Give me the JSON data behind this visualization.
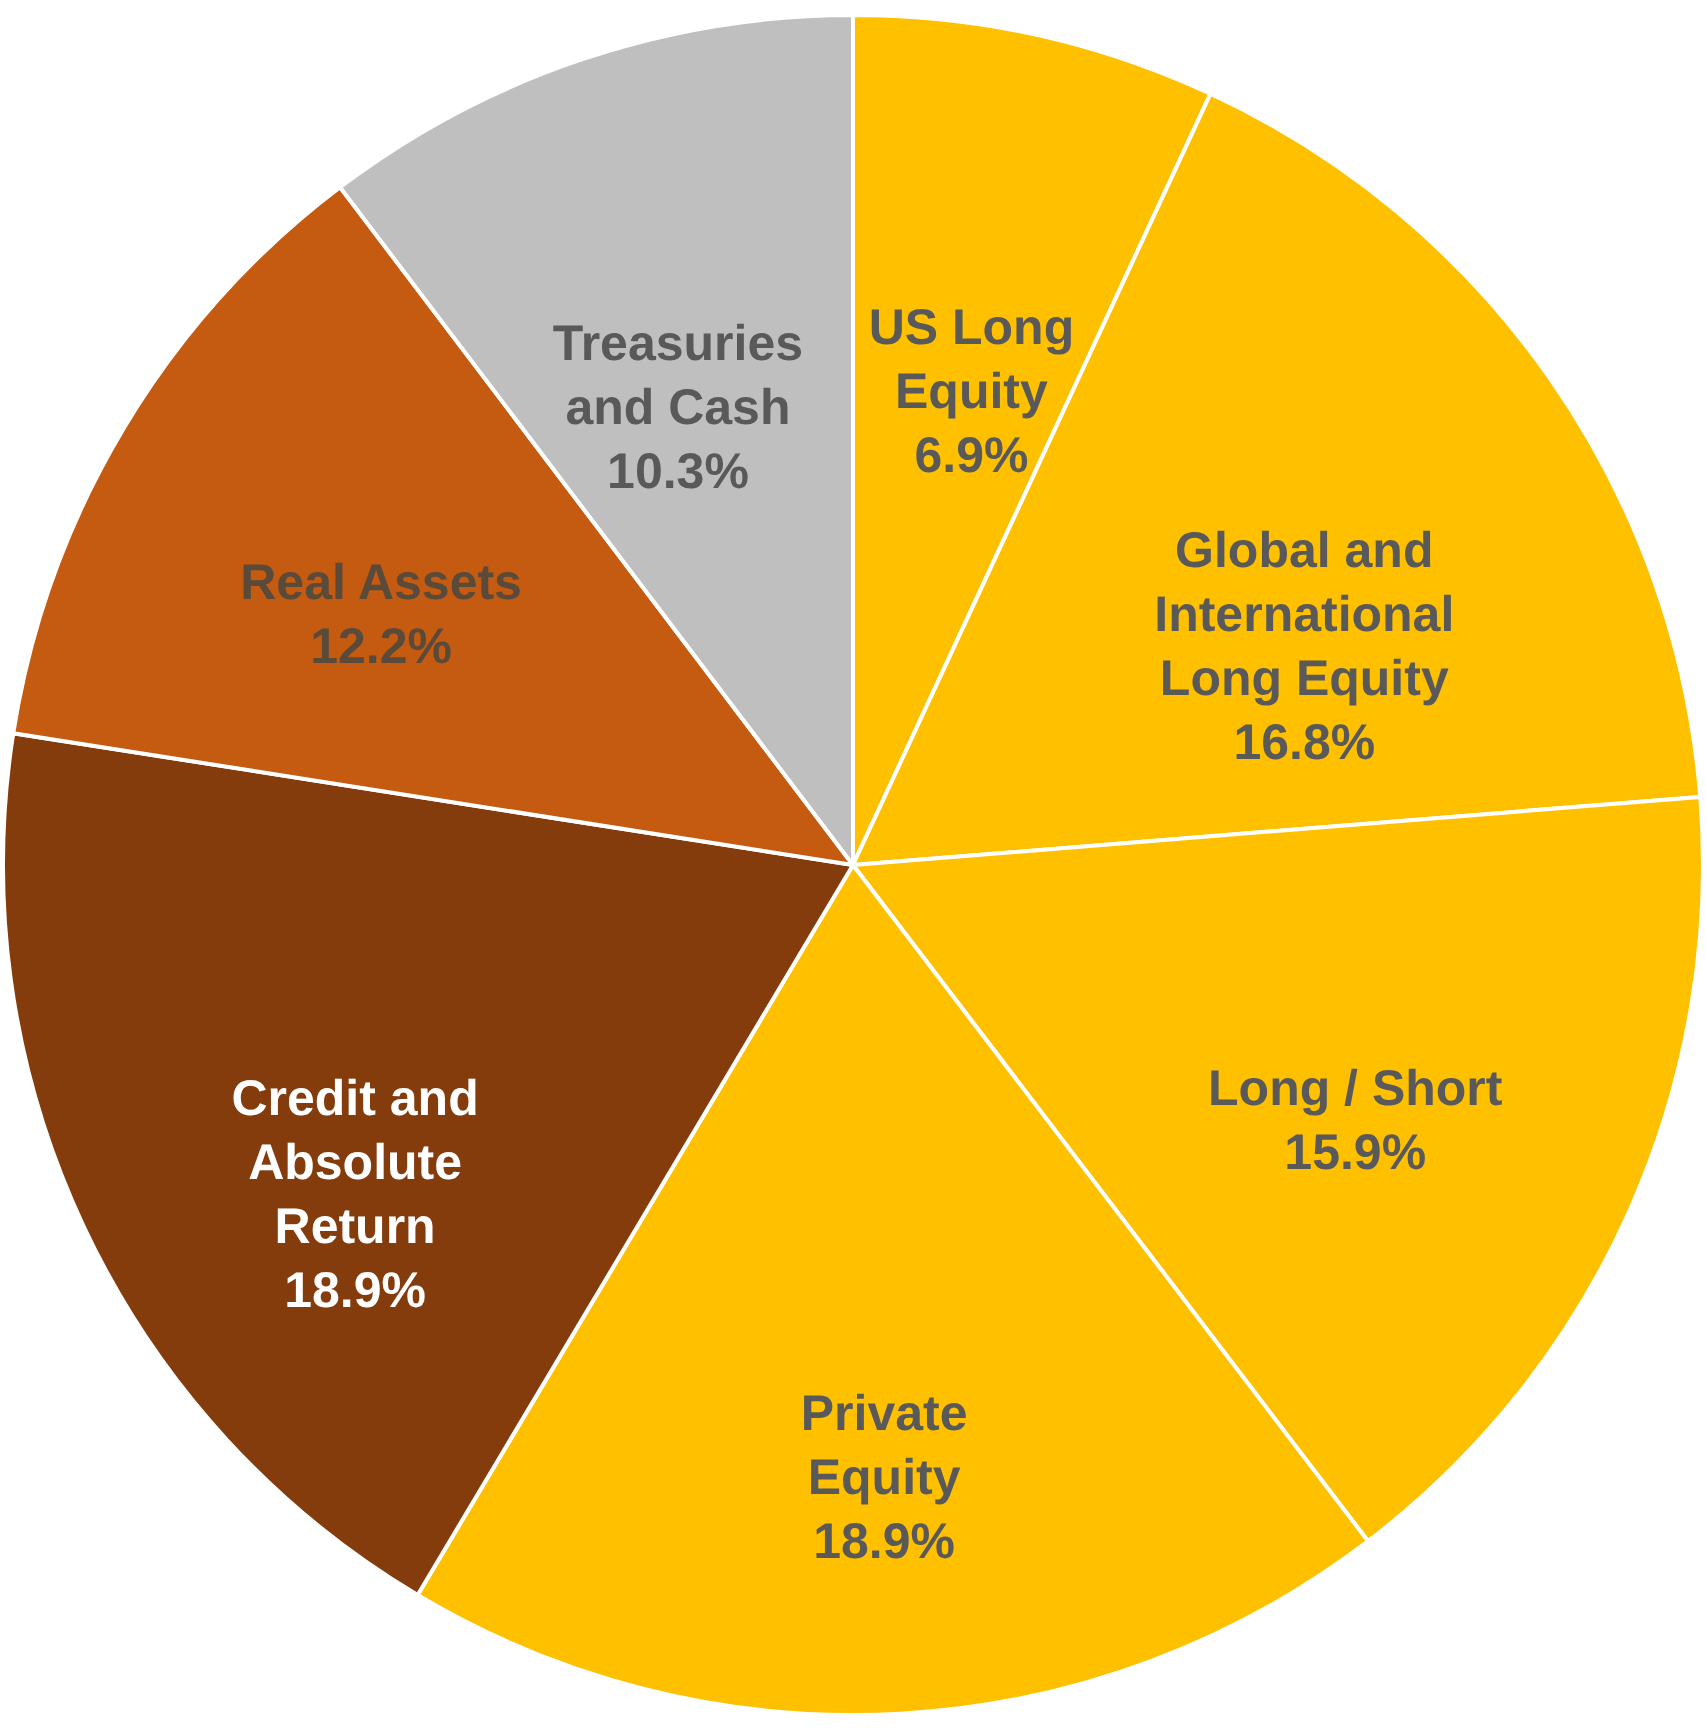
{
  "chart_data": {
    "type": "pie",
    "categories": [
      "US Long Equity",
      "Global and International Long Equity",
      "Long / Short",
      "Private Equity",
      "Credit and Absolute Return",
      "Real Assets",
      "Treasuries and Cash"
    ],
    "values": [
      6.9,
      16.8,
      15.9,
      18.9,
      18.9,
      12.2,
      10.3
    ],
    "value_labels": [
      "6.9%",
      "16.8%",
      "15.9%",
      "18.9%",
      "18.9%",
      "12.2%",
      "10.3%"
    ],
    "colors": [
      "#ffc000",
      "#ffc000",
      "#ffc000",
      "#ffc000",
      "#843c0c",
      "#c55a11",
      "#bfbfbf"
    ]
  }
}
